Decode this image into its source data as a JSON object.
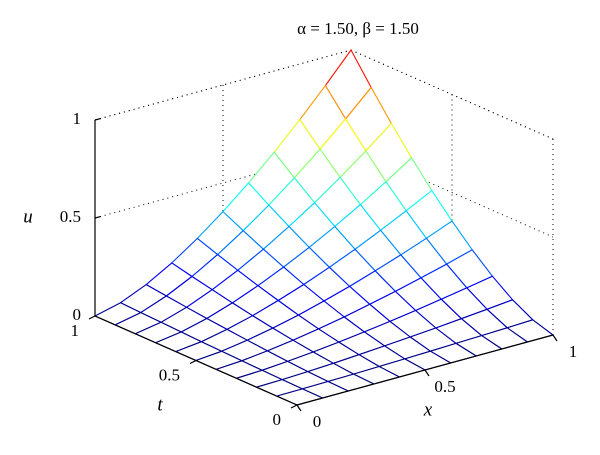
{
  "chart_data": {
    "type": "surface",
    "title": "α = 1.50, β = 1.50",
    "xlabel": "x",
    "ylabel": "t",
    "zlabel": "u",
    "x": [
      0,
      0.1,
      0.2,
      0.3,
      0.4,
      0.5,
      0.6,
      0.7,
      0.8,
      0.9,
      1
    ],
    "t": [
      0,
      0.1,
      0.2,
      0.3,
      0.4,
      0.5,
      0.6,
      0.7,
      0.8,
      0.9,
      1
    ],
    "z": [
      [
        0,
        0,
        0,
        0,
        0,
        0,
        0,
        0,
        0,
        0,
        0
      ],
      [
        0,
        0.001,
        0.003,
        0.005,
        0.008,
        0.011,
        0.015,
        0.019,
        0.023,
        0.027,
        0.032
      ],
      [
        0,
        0.003,
        0.008,
        0.015,
        0.023,
        0.032,
        0.042,
        0.052,
        0.064,
        0.076,
        0.089
      ],
      [
        0,
        0.005,
        0.015,
        0.027,
        0.042,
        0.058,
        0.076,
        0.096,
        0.118,
        0.14,
        0.164
      ],
      [
        0,
        0.008,
        0.023,
        0.042,
        0.064,
        0.089,
        0.118,
        0.148,
        0.181,
        0.216,
        0.253
      ],
      [
        0,
        0.011,
        0.032,
        0.058,
        0.089,
        0.125,
        0.164,
        0.207,
        0.253,
        0.302,
        0.354
      ],
      [
        0,
        0.015,
        0.042,
        0.076,
        0.118,
        0.164,
        0.216,
        0.272,
        0.333,
        0.397,
        0.465
      ],
      [
        0,
        0.019,
        0.052,
        0.096,
        0.148,
        0.207,
        0.272,
        0.343,
        0.419,
        0.5,
        0.586
      ],
      [
        0,
        0.023,
        0.064,
        0.118,
        0.181,
        0.253,
        0.333,
        0.419,
        0.512,
        0.611,
        0.716
      ],
      [
        0,
        0.027,
        0.076,
        0.14,
        0.216,
        0.302,
        0.397,
        0.5,
        0.611,
        0.729,
        0.854
      ],
      [
        0,
        0.032,
        0.089,
        0.164,
        0.253,
        0.354,
        0.465,
        0.586,
        0.716,
        0.854,
        1.0
      ]
    ],
    "xlim": [
      0,
      1
    ],
    "ylim": [
      0,
      1
    ],
    "zlim": [
      0,
      1
    ],
    "xticks": [
      0,
      0.5,
      1
    ],
    "yticks": [
      0,
      0.5,
      1
    ],
    "zticks": [
      0,
      0.5,
      1
    ],
    "colormap": "jet"
  }
}
